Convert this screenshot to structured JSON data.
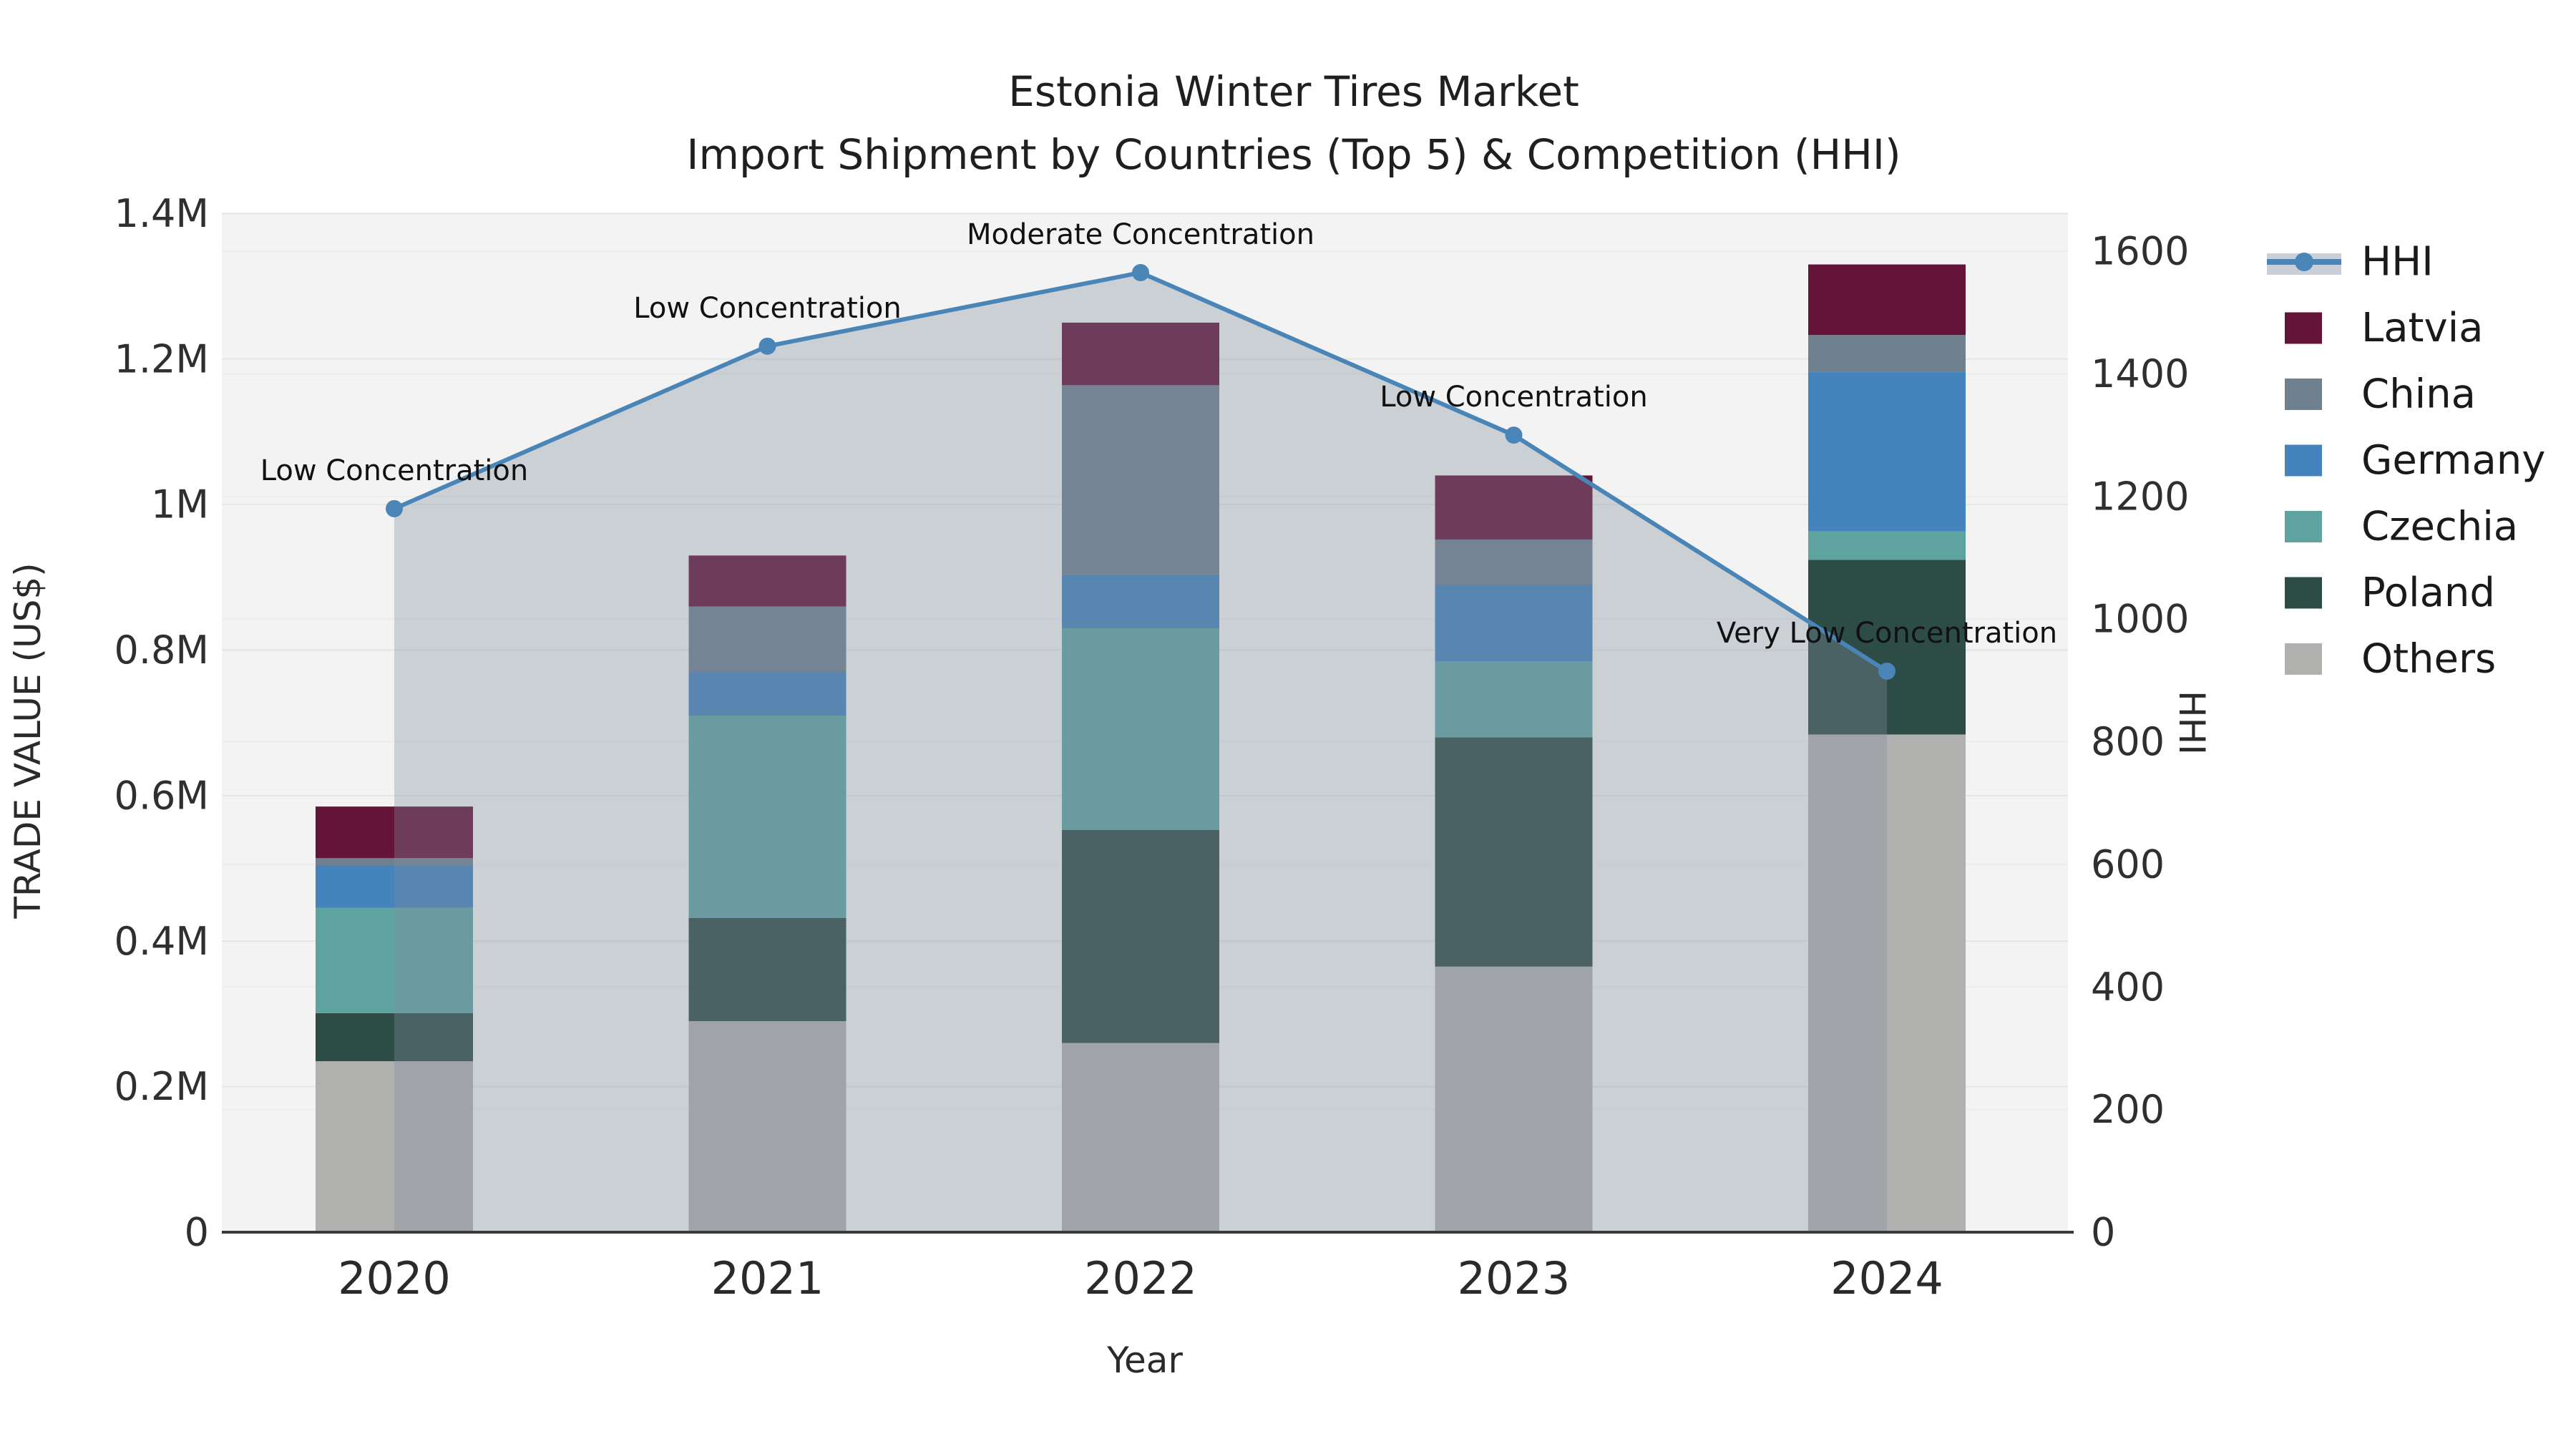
{
  "title": {
    "line1": "Estonia Winter Tires Market",
    "line2": "Import Shipment by Countries (Top 5) & Competition (HHI)"
  },
  "axes": {
    "y_left": {
      "title": "TRADE VALUE (US$)",
      "tick_labels": [
        "0",
        "0.2M",
        "0.4M",
        "0.6M",
        "0.8M",
        "1M",
        "1.2M",
        "1.4M"
      ],
      "tick_values": [
        0,
        200000,
        400000,
        600000,
        800000,
        1000000,
        1200000,
        1400000
      ]
    },
    "y_right": {
      "title": "HHI",
      "tick_labels": [
        "0",
        "200",
        "400",
        "600",
        "800",
        "1000",
        "1200",
        "1400",
        "1600"
      ],
      "tick_values": [
        0,
        200,
        400,
        600,
        800,
        1000,
        1200,
        1400,
        1600
      ]
    },
    "x": {
      "title": "Year",
      "tick_labels": [
        "2020",
        "2021",
        "2022",
        "2023",
        "2024"
      ]
    }
  },
  "legend": {
    "items": [
      {
        "label": "HHI",
        "type": "line",
        "color": "#4a85b8"
      },
      {
        "label": "Latvia",
        "type": "swatch",
        "color": "#641339"
      },
      {
        "label": "China",
        "type": "swatch",
        "color": "#6f808f"
      },
      {
        "label": "Germany",
        "type": "swatch",
        "color": "#4483bb"
      },
      {
        "label": "Czechia",
        "type": "swatch",
        "color": "#5fa3a1"
      },
      {
        "label": "Poland",
        "type": "swatch",
        "color": "#2e4c46"
      },
      {
        "label": "Others",
        "type": "swatch",
        "color": "#b0b1af"
      }
    ]
  },
  "chart_data": {
    "type": "bar+line",
    "title": "Estonia Winter Tires Market — Import Shipment by Countries (Top 5) & Competition (HHI)",
    "categories": [
      "2020",
      "2021",
      "2022",
      "2023",
      "2024"
    ],
    "xlabel": "Year",
    "ylabel_left": "TRADE VALUE (US$)",
    "ylabel_right": "HHI",
    "y_left_range": [
      0,
      1400000
    ],
    "y_right_range": [
      0,
      1600
    ],
    "grid": true,
    "legend_position": "right",
    "bar_mode": "stacked",
    "stack_order_bottom_to_top": [
      "Others",
      "Poland",
      "Czechia",
      "Germany",
      "China",
      "Latvia"
    ],
    "series": [
      {
        "name": "Latvia",
        "type": "bar",
        "color": "#641339",
        "values": [
          71000,
          70000,
          86000,
          88000,
          97000
        ]
      },
      {
        "name": "China",
        "type": "bar",
        "color": "#6f808f",
        "values": [
          10000,
          90000,
          260000,
          62000,
          51000
        ]
      },
      {
        "name": "Germany",
        "type": "bar",
        "color": "#4483bb",
        "values": [
          58000,
          60000,
          74000,
          106000,
          219000
        ]
      },
      {
        "name": "Czechia",
        "type": "bar",
        "color": "#5fa3a1",
        "values": [
          145000,
          278000,
          277000,
          104000,
          39000
        ]
      },
      {
        "name": "Poland",
        "type": "bar",
        "color": "#2e4c46",
        "values": [
          66000,
          142000,
          293000,
          315000,
          240000
        ]
      },
      {
        "name": "Others",
        "type": "bar",
        "color": "#b0b1af",
        "values": [
          235000,
          290000,
          260000,
          365000,
          684000
        ]
      }
    ],
    "line_series": {
      "name": "HHI",
      "axis": "right",
      "color": "#4a85b8",
      "area_fill": "rgba(128,140,158,0.34)",
      "values": [
        1180,
        1445,
        1565,
        1300,
        915
      ]
    },
    "point_annotations": [
      "Low Concentration",
      "Low Concentration",
      "Moderate Concentration",
      "Low Concentration",
      "Very Low Concentration"
    ]
  },
  "colors": {
    "page_bg": "#ffffff",
    "plot_bg": "#f2f3f2",
    "grid_left": "#e3e6e6",
    "grid_right": "#eaeded",
    "axis_line": "#3b3b3b",
    "legend_fill_band": "#c9ced7"
  }
}
